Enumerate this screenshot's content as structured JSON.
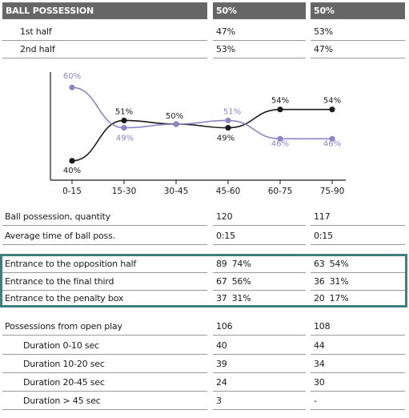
{
  "header": {
    "title": "BALL POSSESSION",
    "team1": "50%",
    "team2": "50%"
  },
  "halves": [
    {
      "label": "1st half",
      "team1": "47%",
      "team2": "53%"
    },
    {
      "label": "2nd half",
      "team1": "53%",
      "team2": "47%"
    }
  ],
  "chart_data": {
    "type": "line",
    "categories": [
      "0-15",
      "15-30",
      "30-45",
      "45-60",
      "60-75",
      "75-90"
    ],
    "series": [
      {
        "values": [
          40,
          51,
          50,
          49,
          54,
          54
        ],
        "labels": [
          "40%",
          "51%",
          "50%",
          "49%",
          "54%",
          "54%"
        ],
        "color": "#1a1a1a"
      },
      {
        "values": [
          60,
          49,
          50,
          51,
          46,
          46
        ],
        "labels": [
          "60%",
          "49%",
          "",
          "51%",
          "46%",
          "46%"
        ],
        "color": "#8a86c7"
      }
    ],
    "ylim": [
      38,
      62
    ],
    "grid": false,
    "legend": "none"
  },
  "stats": [
    {
      "label": "Ball possession, quantity",
      "team1": "120",
      "team2": "117"
    },
    {
      "label": "Average time of ball poss.",
      "team1": "0:15",
      "team2": "0:15"
    }
  ],
  "entrances": [
    {
      "label": "Entrance to the opposition half",
      "team1": "89",
      "team1_pct": "74%",
      "team2": "63",
      "team2_pct": "54%"
    },
    {
      "label": "Entrance to the final third",
      "team1": "67",
      "team1_pct": "56%",
      "team2": "36",
      "team2_pct": "31%"
    },
    {
      "label": "Entrance to the penalty box",
      "team1": "37",
      "team1_pct": "31%",
      "team2": "20",
      "team2_pct": "17%"
    }
  ],
  "open_play": {
    "label": "Possessions from open play",
    "team1": "106",
    "team2": "108"
  },
  "durations": [
    {
      "label": "Duration  0-10 sec",
      "team1": "40",
      "team2": "44"
    },
    {
      "label": "Duration  10-20 sec",
      "team1": "39",
      "team2": "34"
    },
    {
      "label": "Duration  20-45 sec",
      "team1": "24",
      "team2": "30"
    },
    {
      "label": "Duration  > 45 sec",
      "team1": "3",
      "team2": "-"
    }
  ],
  "colors": {
    "header_bg": "#666666",
    "highlight_border": "#3d7f7c",
    "team1_line": "#1a1a1a",
    "team2_line": "#8a86c7"
  }
}
